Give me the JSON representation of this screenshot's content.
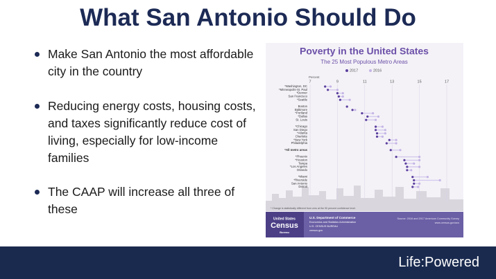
{
  "slide": {
    "title": "What San Antonio Should Do",
    "bullets": [
      "Make San Antonio the most affordable city in the country",
      "Reducing energy costs, housing costs, and taxes significantly reduce cost of living, especially for low-income families",
      "The CAAP will increase all three of these"
    ],
    "logo": "Life:Powered"
  },
  "figure": {
    "title": "Poverty in the United States",
    "subtitle": "The 25 Most Populous Metro Areas",
    "legend": [
      {
        "name": "2017",
        "color": "#5b3f9e"
      },
      {
        "name": "2016",
        "color": "#c4b4e6"
      }
    ],
    "axis_label": "Percent",
    "xlim": [
      7,
      17
    ],
    "xticks": [
      7,
      9,
      11,
      13,
      15,
      17
    ],
    "groups": [
      [
        {
          "name": "*Washington, DC",
          "values": [
            8.1,
            8.5
          ]
        },
        {
          "name": "*Minneapolis-St. Paul",
          "values": [
            8.3,
            9.0
          ]
        },
        {
          "name": "*Denver",
          "values": [
            9.0,
            9.4
          ]
        },
        {
          "name": "San Francisco",
          "values": [
            9.1,
            9.4
          ]
        },
        {
          "name": "*Seattle",
          "values": [
            9.2,
            9.9
          ]
        }
      ],
      [
        {
          "name": "Boston",
          "values": [
            9.7,
            9.7
          ]
        },
        {
          "name": "Baltimore",
          "values": [
            10.1,
            10.3
          ]
        },
        {
          "name": "*Portland",
          "values": [
            10.8,
            11.6
          ]
        },
        {
          "name": "*Dallas",
          "values": [
            11.2,
            12.0
          ]
        },
        {
          "name": "St. Louis",
          "values": [
            11.1,
            11.8
          ]
        }
      ],
      [
        {
          "name": "*Chicago",
          "values": [
            11.8,
            12.3
          ]
        },
        {
          "name": "San Diego",
          "values": [
            11.8,
            12.5
          ]
        },
        {
          "name": "*Atlanta",
          "values": [
            11.9,
            12.5
          ]
        },
        {
          "name": "Charlotte",
          "values": [
            11.9,
            12.3
          ]
        },
        {
          "name": "*New York",
          "values": [
            12.8,
            13.3
          ]
        },
        {
          "name": "Philadelphia",
          "values": [
            12.6,
            13.3
          ]
        }
      ],
      [
        {
          "name": "*All metro areas",
          "values": [
            12.9,
            13.6
          ]
        }
      ],
      [
        {
          "name": "*Phoenix",
          "values": [
            13.3,
            15.0
          ]
        },
        {
          "name": "*Houston",
          "values": [
            13.9,
            15.0
          ]
        },
        {
          "name": "Tampa",
          "values": [
            14.0,
            14.6
          ]
        },
        {
          "name": "*Los Angeles",
          "values": [
            14.1,
            15.0
          ]
        },
        {
          "name": "Orlando",
          "values": [
            14.1,
            14.4
          ]
        }
      ],
      [
        {
          "name": "*Miami",
          "values": [
            14.5,
            15.6
          ]
        },
        {
          "name": "*Riverside",
          "values": [
            14.6,
            16.5
          ]
        },
        {
          "name": "San Antonio",
          "values": [
            14.6,
            15.0
          ]
        },
        {
          "name": "Detroit",
          "values": [
            14.5,
            14.9
          ]
        }
      ]
    ],
    "note": "* Change is statistically different from zero at the 90 percent confidence level.",
    "census_logo": [
      "United States",
      "Census",
      "Bureau"
    ],
    "agency": [
      "U.S. Department of Commerce",
      "Economics and Statistics Administration",
      "U.S. CENSUS BUREAU",
      "census.gov"
    ],
    "source": [
      "Source: 2016 and 2017 American Community Survey",
      "www.census.gov/acs"
    ]
  }
}
